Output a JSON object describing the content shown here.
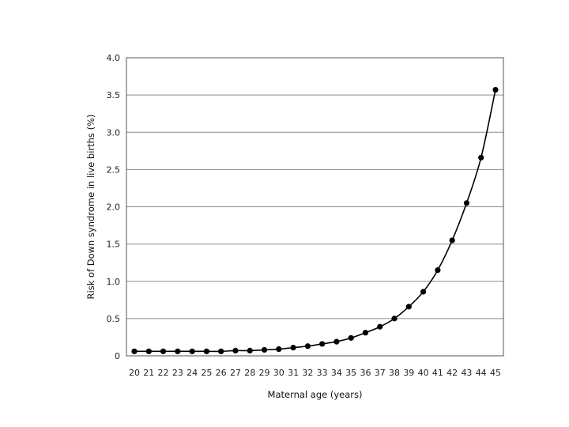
{
  "chart_data": {
    "type": "line",
    "title": "",
    "xlabel": "Maternal age (years)",
    "ylabel": "Risk of Down syndrome in live births (%)",
    "x": [
      20,
      21,
      22,
      23,
      24,
      25,
      26,
      27,
      28,
      29,
      30,
      31,
      32,
      33,
      34,
      35,
      36,
      37,
      38,
      39,
      40,
      41,
      42,
      43,
      44,
      45
    ],
    "series": [
      {
        "values": [
          0.06,
          0.06,
          0.06,
          0.06,
          0.06,
          0.06,
          0.06,
          0.07,
          0.07,
          0.08,
          0.09,
          0.11,
          0.13,
          0.16,
          0.19,
          0.24,
          0.31,
          0.39,
          0.5,
          0.66,
          0.86,
          1.15,
          1.55,
          2.05,
          2.66,
          3.57
        ]
      }
    ],
    "xlim": [
      20,
      45
    ],
    "ylim": [
      0,
      4.0
    ],
    "x_tick_labels": [
      "20",
      "21",
      "22",
      "23",
      "24",
      "25",
      "26",
      "27",
      "28",
      "29",
      "30",
      "31",
      "32",
      "33",
      "34",
      "35",
      "36",
      "37",
      "38",
      "39",
      "40",
      "41",
      "42",
      "43",
      "44",
      "45"
    ],
    "y_tick_labels": [
      "0",
      "0.5",
      "1.0",
      "1.5",
      "2.0",
      "2.5",
      "3.0",
      "3.5",
      "4.0"
    ],
    "y_ticks": [
      0,
      0.5,
      1.0,
      1.5,
      2.0,
      2.5,
      3.0,
      3.5,
      4.0
    ],
    "grid": true,
    "legend": "none",
    "colors": {
      "line": "#000000",
      "marker": "#000000",
      "grid": "#8c8c8c"
    }
  }
}
